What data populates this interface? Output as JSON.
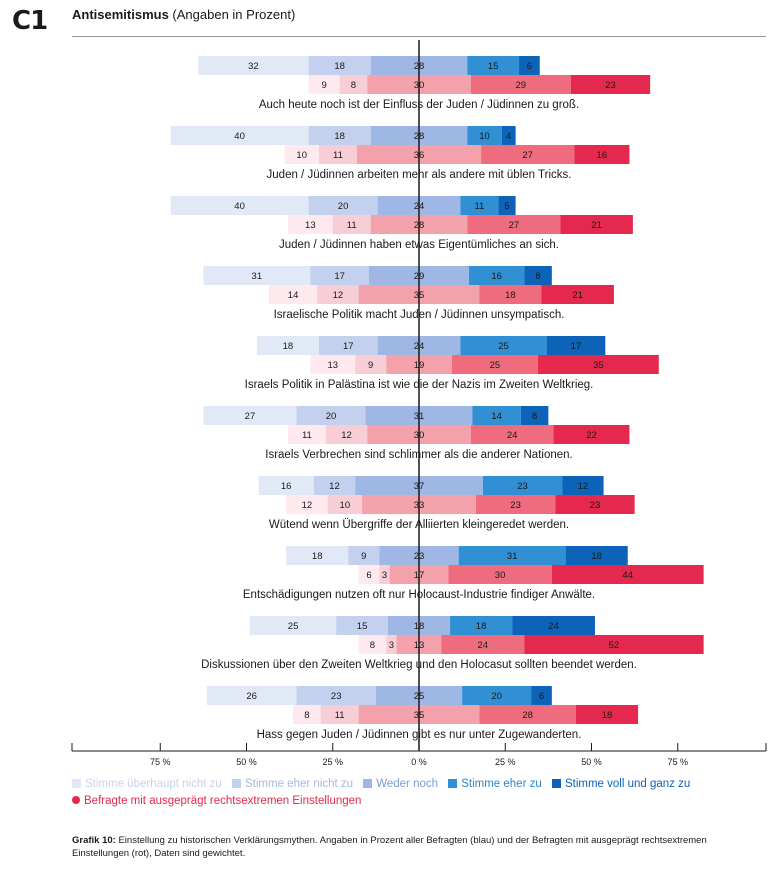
{
  "header": {
    "badge": "C1",
    "title_bold": "Antisemitismus",
    "title_rest": " (Angaben in Prozent)"
  },
  "colors": {
    "blue": [
      "#e1e8f6",
      "#c3d1ee",
      "#9fb7e5",
      "#318fd4",
      "#0c63b8"
    ],
    "red": [
      "#fde9ee",
      "#f8ced6",
      "#f3a1ab",
      "#ee6c7e",
      "#e5284d"
    ]
  },
  "chart_data": {
    "type": "bar",
    "subtype": "diverging-stacked",
    "title": "Antisemitismus (Angaben in Prozent)",
    "xlim": [
      -100,
      100
    ],
    "xticks": [
      -75,
      -50,
      -25,
      0,
      25,
      50,
      75
    ],
    "xtick_labels": [
      "75 %",
      "50 %",
      "25 %",
      "0 %",
      "25 %",
      "50 %",
      "75 %"
    ],
    "series_names": [
      "Stimme überhaupt nicht zu",
      "Stimme eher nicht zu",
      "Weder noch",
      "Stimme eher zu",
      "Stimme voll und ganz zu"
    ],
    "categories": [
      "Auch heute noch ist der Einfluss der Juden / Jüdinnen zu groß.",
      "Juden / Jüdinnen arbeiten mehr als andere mit üblen Tricks.",
      "Juden / Jüdinnen haben etwas Eigentümliches an sich.",
      "Israelische Politik macht Juden / Jüdinnen unsympatisch.",
      "Israels Politik in Palästina ist wie die der Nazis im Zweiten Weltkrieg.",
      "Israels Verbrechen sind schlimmer als die anderer Nationen.",
      "Wütend wenn Übergriffe der Alliierten kleingeredet werden.",
      "Entschädigungen nutzen oft nur Holocaust-Industrie findiger Anwälte.",
      "Diskussionen über den Zweiten Weltkrieg und den Holocasut sollten beendet werden.",
      "Hass gegen Juden / Jüdinnen gibt es nur unter Zugewanderten."
    ],
    "groups": [
      {
        "name": "Alle Befragten",
        "values": [
          [
            32,
            18,
            28,
            15,
            6
          ],
          [
            40,
            18,
            28,
            10,
            4
          ],
          [
            40,
            20,
            24,
            11,
            5
          ],
          [
            31,
            17,
            29,
            16,
            8
          ],
          [
            18,
            17,
            24,
            25,
            17
          ],
          [
            27,
            20,
            31,
            14,
            8
          ],
          [
            16,
            12,
            37,
            23,
            12
          ],
          [
            18,
            9,
            23,
            31,
            18
          ],
          [
            25,
            15,
            18,
            18,
            24
          ],
          [
            26,
            23,
            25,
            20,
            6
          ]
        ]
      },
      {
        "name": "Befragte mit ausgeprägt rechtsextremen Einstellungen",
        "values": [
          [
            9,
            8,
            30,
            29,
            23
          ],
          [
            10,
            11,
            36,
            27,
            16
          ],
          [
            13,
            11,
            28,
            27,
            21
          ],
          [
            14,
            12,
            35,
            18,
            21
          ],
          [
            13,
            9,
            19,
            25,
            35
          ],
          [
            11,
            12,
            30,
            24,
            22
          ],
          [
            12,
            10,
            33,
            23,
            23
          ],
          [
            6,
            3,
            17,
            30,
            44
          ],
          [
            8,
            3,
            13,
            24,
            52
          ],
          [
            8,
            11,
            35,
            28,
            18
          ]
        ]
      }
    ]
  },
  "legend": {
    "items": [
      "Stimme überhaupt nicht zu",
      "Stimme eher nicht zu",
      "Weder noch",
      "Stimme eher zu",
      "Stimme voll und ganz zu"
    ],
    "extreme": "Befragte mit ausgeprägt rechtsextremen Einstellungen"
  },
  "caption": {
    "bold": "Grafik 10:",
    "text": " Einstellung zu historischen Verklärungsmythen. Angaben in Prozent aller Befragten (blau) und der Befragten mit ausgeprägt rechtsextremen Einstellungen (rot), Daten sind gewichtet."
  }
}
